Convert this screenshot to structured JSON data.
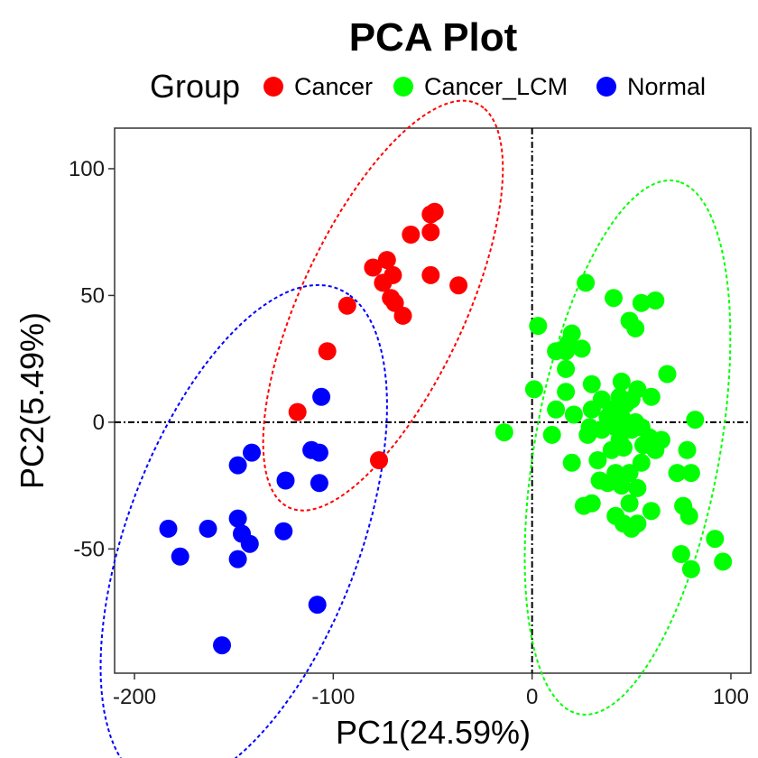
{
  "chart_data": {
    "type": "scatter",
    "title": "PCA Plot",
    "xlabel": "PC1(24.59%)",
    "ylabel": "PC2(5.49%)",
    "xlim": [
      -210,
      110
    ],
    "ylim": [
      -99,
      116
    ],
    "xticks": [
      -200,
      -100,
      0,
      100
    ],
    "yticks": [
      -50,
      0,
      50,
      100
    ],
    "xtick_labels": [
      "-200",
      "-100",
      "0",
      "100"
    ],
    "ytick_labels": [
      "-50",
      "0",
      "50",
      "100"
    ],
    "grid": false,
    "reference_lines": {
      "x": 0,
      "y": 0,
      "style": "dotdash"
    },
    "legend": {
      "title": "Group",
      "position": "top"
    },
    "series": [
      {
        "name": "Cancer",
        "color": "#FF0000",
        "ellipse": {
          "cx": -75,
          "cy": 46,
          "rx": 93,
          "ry": 39,
          "angle_deg": 57
        },
        "points": [
          [
            -49,
            83
          ],
          [
            -51,
            82
          ],
          [
            -61,
            74
          ],
          [
            -51,
            75
          ],
          [
            -73,
            64
          ],
          [
            -80,
            61
          ],
          [
            -70,
            58
          ],
          [
            -51,
            58
          ],
          [
            -37,
            54
          ],
          [
            -75,
            55
          ],
          [
            -71,
            49
          ],
          [
            -69,
            47
          ],
          [
            -93,
            46
          ],
          [
            -65,
            42
          ],
          [
            -103,
            28
          ],
          [
            -118,
            4
          ],
          [
            -77,
            -15
          ]
        ]
      },
      {
        "name": "Cancer_LCM",
        "color": "#00FF00",
        "ellipse": {
          "cx": 48,
          "cy": -10,
          "rx": 108,
          "ry": 46,
          "angle_deg": 76
        },
        "points": [
          [
            27,
            55
          ],
          [
            41,
            49
          ],
          [
            55,
            47
          ],
          [
            62,
            48
          ],
          [
            49,
            40
          ],
          [
            52,
            37
          ],
          [
            3,
            38
          ],
          [
            20,
            35
          ],
          [
            18,
            31
          ],
          [
            12,
            28
          ],
          [
            17,
            28
          ],
          [
            25,
            29
          ],
          [
            17,
            21
          ],
          [
            68,
            19
          ],
          [
            30,
            15
          ],
          [
            45,
            16
          ],
          [
            53,
            13
          ],
          [
            60,
            10
          ],
          [
            1,
            13
          ],
          [
            17,
            12
          ],
          [
            35,
            9
          ],
          [
            44,
            10
          ],
          [
            50,
            9
          ],
          [
            47,
            7
          ],
          [
            40,
            5
          ],
          [
            30,
            5
          ],
          [
            12,
            5
          ],
          [
            21,
            3
          ],
          [
            38,
            2
          ],
          [
            45,
            2
          ],
          [
            52,
            0
          ],
          [
            82,
            1
          ],
          [
            29,
            -2
          ],
          [
            35,
            -3
          ],
          [
            42,
            -2
          ],
          [
            50,
            -3
          ],
          [
            55,
            -2
          ],
          [
            -14,
            -4
          ],
          [
            10,
            -5
          ],
          [
            28,
            -5
          ],
          [
            44,
            -7
          ],
          [
            59,
            -6
          ],
          [
            65,
            -7
          ],
          [
            40,
            -11
          ],
          [
            46,
            -10
          ],
          [
            56,
            -9
          ],
          [
            62,
            -11
          ],
          [
            78,
            -11
          ],
          [
            33,
            -15
          ],
          [
            20,
            -16
          ],
          [
            55,
            -16
          ],
          [
            42,
            -20
          ],
          [
            49,
            -20
          ],
          [
            73,
            -20
          ],
          [
            80,
            -20
          ],
          [
            34,
            -23
          ],
          [
            38,
            -24
          ],
          [
            45,
            -25
          ],
          [
            53,
            -26
          ],
          [
            26,
            -33
          ],
          [
            30,
            -32
          ],
          [
            49,
            -32
          ],
          [
            42,
            -37
          ],
          [
            60,
            -35
          ],
          [
            76,
            -33
          ],
          [
            79,
            -37
          ],
          [
            46,
            -40
          ],
          [
            53,
            -40
          ],
          [
            50,
            -42
          ],
          [
            92,
            -46
          ],
          [
            75,
            -52
          ],
          [
            80,
            -58
          ],
          [
            96,
            -55
          ]
        ]
      },
      {
        "name": "Normal",
        "color": "#0000FF",
        "ellipse": {
          "cx": -145,
          "cy": -45,
          "rx": 109,
          "ry": 56,
          "angle_deg": 61
        },
        "points": [
          [
            -106,
            10
          ],
          [
            -111,
            -11
          ],
          [
            -107,
            -12
          ],
          [
            -141,
            -12
          ],
          [
            -148,
            -17
          ],
          [
            -124,
            -23
          ],
          [
            -107,
            -24
          ],
          [
            -148,
            -38
          ],
          [
            -163,
            -42
          ],
          [
            -183,
            -42
          ],
          [
            -146,
            -44
          ],
          [
            -125,
            -43
          ],
          [
            -142,
            -48
          ],
          [
            -177,
            -53
          ],
          [
            -148,
            -54
          ],
          [
            -108,
            -72
          ],
          [
            -156,
            -88
          ]
        ]
      }
    ]
  }
}
